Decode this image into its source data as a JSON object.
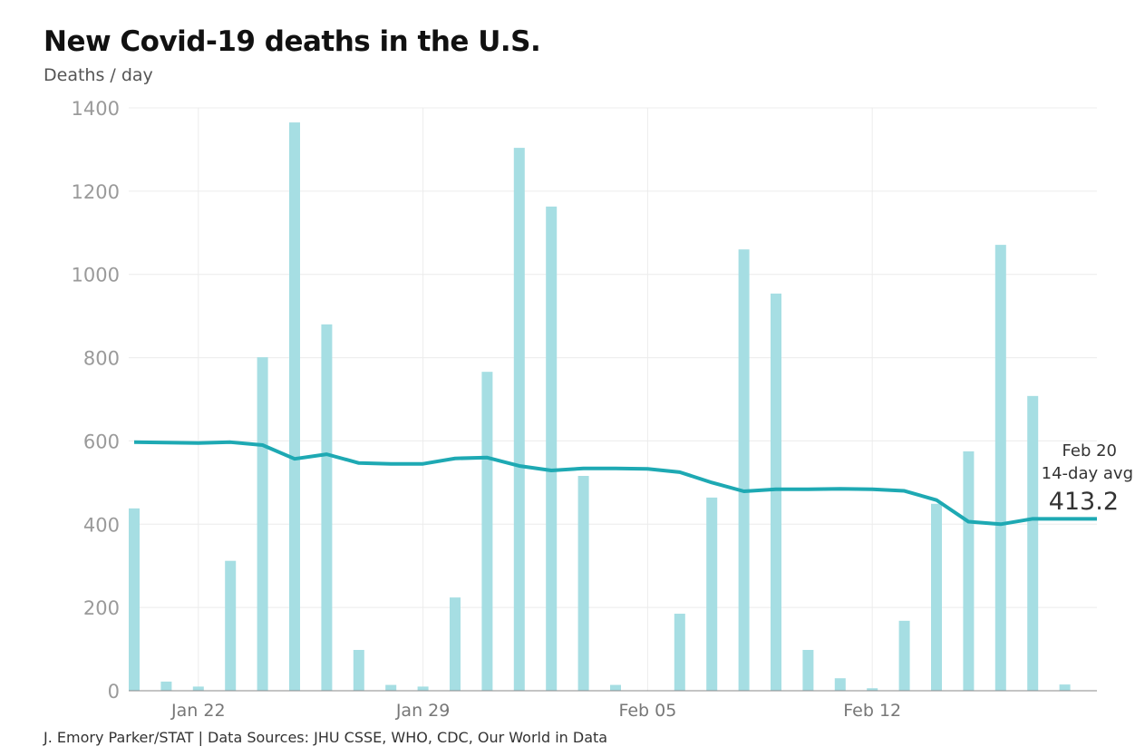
{
  "chart_data": {
    "type": "bar",
    "title": "New Covid-19 deaths in the U.S.",
    "subtitle": "Deaths / day",
    "source": "J. Emory Parker/STAT | Data Sources: JHU CSSE, WHO, CDC, Our World in Data",
    "ylim": [
      0,
      1400
    ],
    "yticks": [
      "0",
      "200",
      "400",
      "600",
      "800",
      "1000",
      "1200",
      "1400"
    ],
    "xticks": [
      {
        "label": "Jan 22",
        "date": "Jan 22"
      },
      {
        "label": "Jan 29",
        "date": "Jan 29"
      },
      {
        "label": "Feb 05",
        "date": "Feb 05"
      },
      {
        "label": "Feb 12",
        "date": "Feb 12"
      }
    ],
    "grid": true,
    "colors": {
      "bars": "#a6dee3",
      "line": "#1ea9b3",
      "grid": "#ececec",
      "axis_text": "#9a9a9a"
    },
    "dates": [
      "Jan 20",
      "Jan 21",
      "Jan 22",
      "Jan 23",
      "Jan 24",
      "Jan 25",
      "Jan 26",
      "Jan 27",
      "Jan 28",
      "Jan 29",
      "Jan 30",
      "Jan 31",
      "Feb 01",
      "Feb 02",
      "Feb 03",
      "Feb 04",
      "Feb 05",
      "Feb 06",
      "Feb 07",
      "Feb 08",
      "Feb 09",
      "Feb 10",
      "Feb 11",
      "Feb 12",
      "Feb 13",
      "Feb 14",
      "Feb 15",
      "Feb 16",
      "Feb 17",
      "Feb 18",
      "Feb 19"
    ],
    "series": [
      {
        "type": "bar",
        "values": [
          438,
          22,
          10,
          312,
          801,
          1365,
          880,
          98,
          14,
          10,
          224,
          766,
          1304,
          1163,
          516,
          14,
          1,
          185,
          464,
          1060,
          954,
          98,
          30,
          6,
          168,
          449,
          575,
          1071,
          708,
          15,
          null
        ]
      },
      {
        "type": "line",
        "values": [
          597,
          596,
          595,
          597,
          590,
          557,
          568,
          547,
          545,
          545,
          558,
          560,
          540,
          529,
          534,
          534,
          533,
          525,
          500,
          479,
          484,
          484,
          485,
          484,
          480,
          458,
          406,
          400,
          413,
          413,
          413
        ]
      }
    ],
    "annotation": {
      "date": "Feb 20",
      "label": "14-day avg",
      "value": "413.2"
    }
  }
}
